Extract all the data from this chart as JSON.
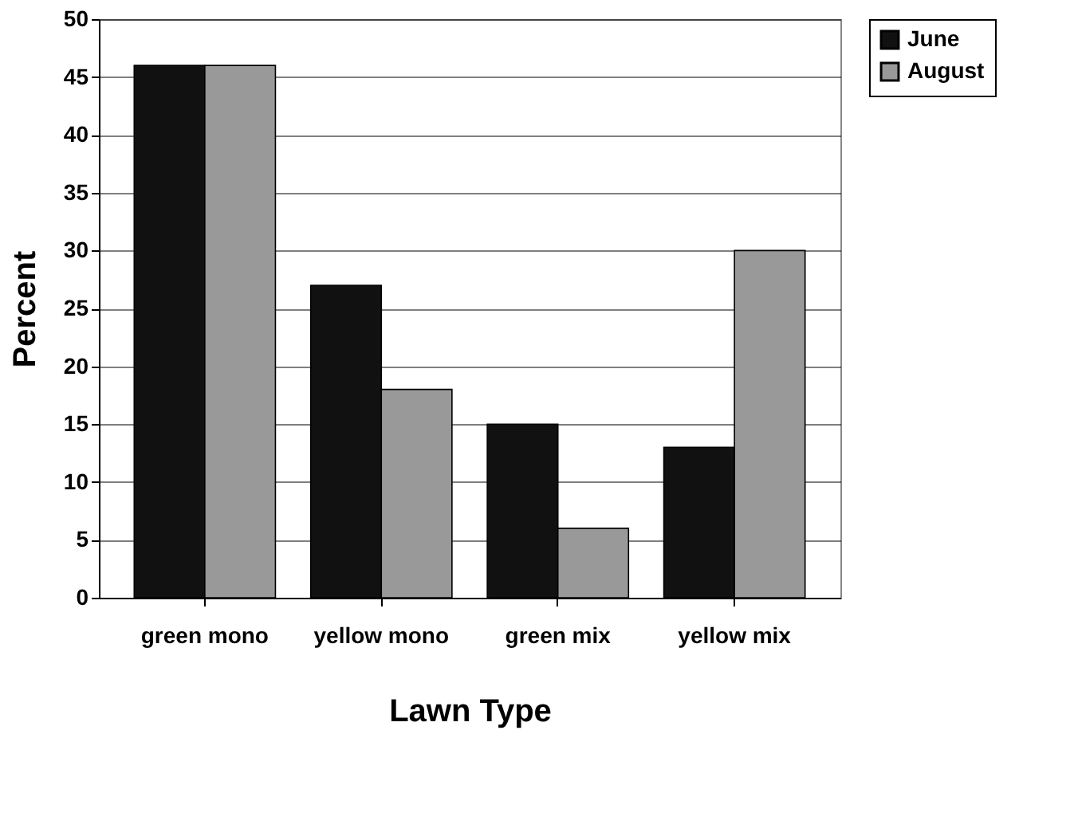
{
  "chart_data": {
    "type": "bar",
    "xlabel": "Lawn Type",
    "ylabel": "Percent",
    "categories": [
      "green mono",
      "yellow mono",
      "green mix",
      "yellow mix"
    ],
    "series": [
      {
        "name": "June",
        "color": "#111111",
        "values": [
          46,
          27,
          15,
          13
        ]
      },
      {
        "name": "August",
        "color": "#999999",
        "values": [
          46,
          18,
          6,
          30
        ]
      }
    ],
    "ylim": [
      0,
      50
    ],
    "yticks": [
      0,
      5,
      10,
      15,
      20,
      25,
      30,
      35,
      40,
      45,
      50
    ],
    "grid": "y",
    "legend": "right"
  }
}
